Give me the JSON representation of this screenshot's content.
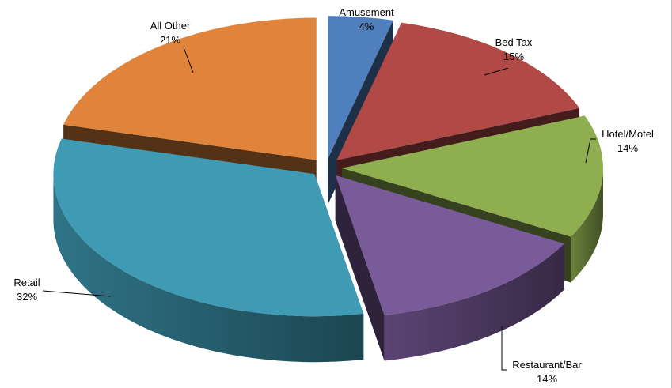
{
  "chart_data": {
    "type": "pie",
    "title": "",
    "legend": "none",
    "slices": [
      {
        "label": "Amusement",
        "percent": "4%",
        "value": 4,
        "color": "#4f7fbd",
        "exploded": true
      },
      {
        "label": "Bed Tax",
        "percent": "15%",
        "value": 15,
        "color": "#b14a46",
        "exploded": true
      },
      {
        "label": "Hotel/Motel",
        "percent": "14%",
        "value": 14,
        "color": "#8eae4f",
        "exploded": true
      },
      {
        "label": "Restaurant/Bar",
        "percent": "14%",
        "value": 14,
        "color": "#7a5b9a",
        "exploded": true
      },
      {
        "label": "Retail",
        "percent": "32%",
        "value": 32,
        "color": "#3f9bb4",
        "exploded": true
      },
      {
        "label": "All Other",
        "percent": "21%",
        "value": 21,
        "color": "#e0843b",
        "exploded": true
      }
    ]
  }
}
